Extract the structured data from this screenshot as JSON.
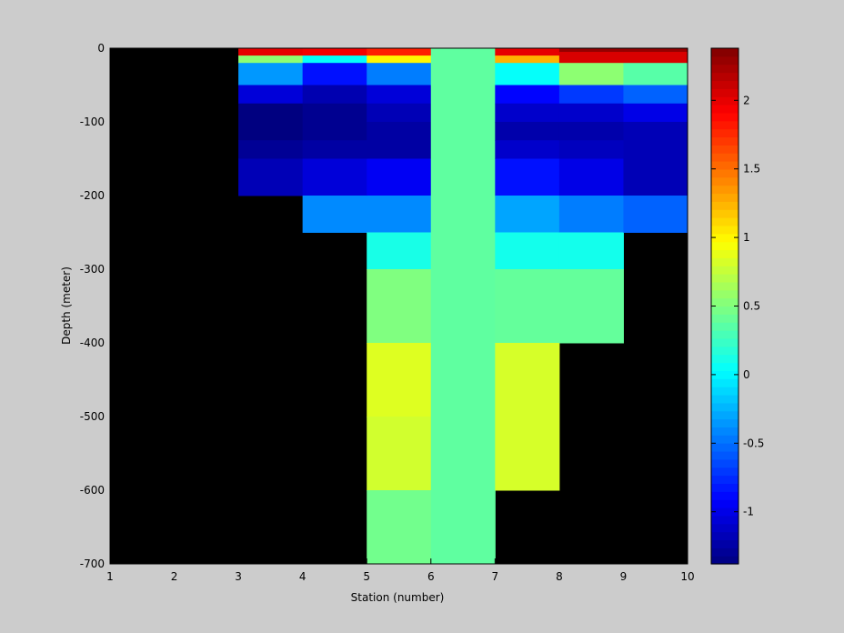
{
  "chart_data": {
    "type": "heatmap",
    "title": "",
    "xlabel": "Station (number)",
    "ylabel": "Depth (meter)",
    "xlim": [
      1,
      10
    ],
    "ylim": [
      -700,
      0
    ],
    "x_ticks": [
      1,
      2,
      3,
      4,
      5,
      6,
      7,
      8,
      9,
      10
    ],
    "y_ticks": [
      0,
      -100,
      -200,
      -300,
      -400,
      -500,
      -600,
      -700
    ],
    "background_color": "#000000",
    "colormap": "jet",
    "colorbar": {
      "clim": [
        -1.38,
        2.38
      ],
      "ticks": [
        -1,
        -0.5,
        0,
        0.5,
        1,
        1.5,
        2
      ],
      "levels": 64
    },
    "cells": [
      {
        "x": [
          3,
          4
        ],
        "y": [
          0,
          -10
        ],
        "v": 2.0
      },
      {
        "x": [
          3,
          4
        ],
        "y": [
          -10,
          -20
        ],
        "v": 0.55
      },
      {
        "x": [
          3,
          4
        ],
        "y": [
          -20,
          -50
        ],
        "v": -0.35
      },
      {
        "x": [
          3,
          4
        ],
        "y": [
          -50,
          -75
        ],
        "v": -1.05
      },
      {
        "x": [
          3,
          4
        ],
        "y": [
          -75,
          -125
        ],
        "v": -1.38
      },
      {
        "x": [
          3,
          4
        ],
        "y": [
          -125,
          -150
        ],
        "v": -1.3
      },
      {
        "x": [
          3,
          4
        ],
        "y": [
          -150,
          -200
        ],
        "v": -1.18
      },
      {
        "x": [
          4,
          5
        ],
        "y": [
          0,
          -10
        ],
        "v": 1.95
      },
      {
        "x": [
          4,
          5
        ],
        "y": [
          -10,
          -20
        ],
        "v": 0.05
      },
      {
        "x": [
          4,
          5
        ],
        "y": [
          -20,
          -50
        ],
        "v": -0.85
      },
      {
        "x": [
          4,
          5
        ],
        "y": [
          -50,
          -75
        ],
        "v": -1.2
      },
      {
        "x": [
          4,
          5
        ],
        "y": [
          -75,
          -125
        ],
        "v": -1.32
      },
      {
        "x": [
          4,
          5
        ],
        "y": [
          -125,
          -150
        ],
        "v": -1.25
      },
      {
        "x": [
          4,
          5
        ],
        "y": [
          -150,
          -200
        ],
        "v": -1.05
      },
      {
        "x": [
          4,
          5
        ],
        "y": [
          -200,
          -250
        ],
        "v": -0.4
      },
      {
        "x": [
          5,
          6
        ],
        "y": [
          0,
          -10
        ],
        "v": 1.8
      },
      {
        "x": [
          5,
          6
        ],
        "y": [
          -10,
          -20
        ],
        "v": 1.0
      },
      {
        "x": [
          5,
          6
        ],
        "y": [
          -20,
          -50
        ],
        "v": -0.45
      },
      {
        "x": [
          5,
          6
        ],
        "y": [
          -50,
          -75
        ],
        "v": -1.05
      },
      {
        "x": [
          5,
          6
        ],
        "y": [
          -75,
          -100
        ],
        "v": -1.18
      },
      {
        "x": [
          5,
          6
        ],
        "y": [
          -100,
          -150
        ],
        "v": -1.25
      },
      {
        "x": [
          5,
          6
        ],
        "y": [
          -150,
          -200
        ],
        "v": -0.95
      },
      {
        "x": [
          5,
          6
        ],
        "y": [
          -200,
          -250
        ],
        "v": -0.4
      },
      {
        "x": [
          5,
          6
        ],
        "y": [
          -250,
          -300
        ],
        "v": 0.12
      },
      {
        "x": [
          5,
          6
        ],
        "y": [
          -300,
          -400
        ],
        "v": 0.5
      },
      {
        "x": [
          5,
          6
        ],
        "y": [
          -400,
          -500
        ],
        "v": 0.85
      },
      {
        "x": [
          5,
          6
        ],
        "y": [
          -500,
          -600
        ],
        "v": 0.8
      },
      {
        "x": [
          5,
          6
        ],
        "y": [
          -600,
          -700
        ],
        "v": 0.45
      },
      {
        "x": [
          6,
          7
        ],
        "y": [
          0,
          -700
        ],
        "v": 0.38
      },
      {
        "x": [
          7,
          8
        ],
        "y": [
          0,
          -10
        ],
        "v": 2.0
      },
      {
        "x": [
          7,
          8
        ],
        "y": [
          -10,
          -20
        ],
        "v": 1.25
      },
      {
        "x": [
          7,
          8
        ],
        "y": [
          -20,
          -50
        ],
        "v": 0.05
      },
      {
        "x": [
          7,
          8
        ],
        "y": [
          -50,
          -75
        ],
        "v": -0.9
      },
      {
        "x": [
          7,
          8
        ],
        "y": [
          -75,
          -100
        ],
        "v": -1.1
      },
      {
        "x": [
          7,
          8
        ],
        "y": [
          -100,
          -125
        ],
        "v": -1.22
      },
      {
        "x": [
          7,
          8
        ],
        "y": [
          -125,
          -150
        ],
        "v": -1.1
      },
      {
        "x": [
          7,
          8
        ],
        "y": [
          -150,
          -200
        ],
        "v": -0.85
      },
      {
        "x": [
          7,
          8
        ],
        "y": [
          -200,
          -250
        ],
        "v": -0.3
      },
      {
        "x": [
          7,
          8
        ],
        "y": [
          -250,
          -300
        ],
        "v": 0.1
      },
      {
        "x": [
          7,
          8
        ],
        "y": [
          -300,
          -400
        ],
        "v": 0.4
      },
      {
        "x": [
          7,
          8
        ],
        "y": [
          -400,
          -600
        ],
        "v": 0.82
      },
      {
        "x": [
          8,
          9
        ],
        "y": [
          0,
          -5
        ],
        "v": 2.3
      },
      {
        "x": [
          8,
          9
        ],
        "y": [
          -5,
          -20
        ],
        "v": 2.05
      },
      {
        "x": [
          8,
          9
        ],
        "y": [
          -20,
          -50
        ],
        "v": 0.55
      },
      {
        "x": [
          8,
          9
        ],
        "y": [
          -50,
          -75
        ],
        "v": -0.7
      },
      {
        "x": [
          8,
          9
        ],
        "y": [
          -75,
          -100
        ],
        "v": -1.1
      },
      {
        "x": [
          8,
          9
        ],
        "y": [
          -100,
          -125
        ],
        "v": -1.22
      },
      {
        "x": [
          8,
          9
        ],
        "y": [
          -125,
          -150
        ],
        "v": -1.15
      },
      {
        "x": [
          8,
          9
        ],
        "y": [
          -150,
          -200
        ],
        "v": -1.0
      },
      {
        "x": [
          8,
          9
        ],
        "y": [
          -200,
          -250
        ],
        "v": -0.45
      },
      {
        "x": [
          8,
          9
        ],
        "y": [
          -250,
          -300
        ],
        "v": 0.1
      },
      {
        "x": [
          8,
          9
        ],
        "y": [
          -300,
          -400
        ],
        "v": 0.4
      },
      {
        "x": [
          9,
          10
        ],
        "y": [
          0,
          -5
        ],
        "v": 2.3
      },
      {
        "x": [
          9,
          10
        ],
        "y": [
          -5,
          -20
        ],
        "v": 2.05
      },
      {
        "x": [
          9,
          10
        ],
        "y": [
          -20,
          -50
        ],
        "v": 0.35
      },
      {
        "x": [
          9,
          10
        ],
        "y": [
          -50,
          -75
        ],
        "v": -0.55
      },
      {
        "x": [
          9,
          10
        ],
        "y": [
          -75,
          -100
        ],
        "v": -1.0
      },
      {
        "x": [
          9,
          10
        ],
        "y": [
          -100,
          -200
        ],
        "v": -1.18
      },
      {
        "x": [
          9,
          10
        ],
        "y": [
          -200,
          -250
        ],
        "v": -0.55
      }
    ]
  }
}
